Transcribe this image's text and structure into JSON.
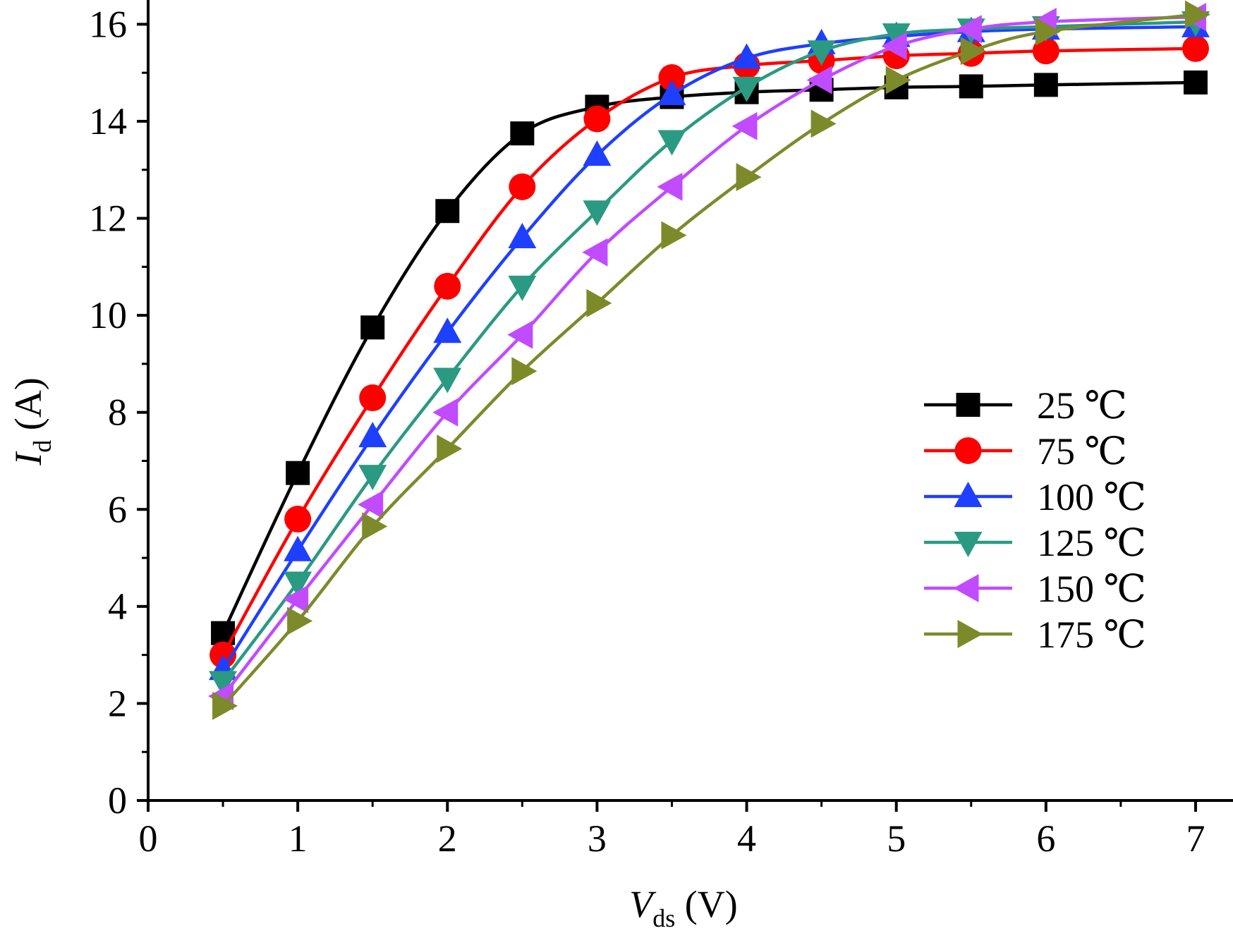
{
  "chart_data": {
    "type": "line",
    "xlabel": {
      "main": "V",
      "sub": "ds",
      "unit": " (V)"
    },
    "ylabel": {
      "main": "I",
      "sub": "d",
      "unit": " (A)"
    },
    "xlim": [
      0,
      7.25
    ],
    "ylim": [
      0,
      16.5
    ],
    "x_ticks": [
      "0",
      "1",
      "2",
      "3",
      "4",
      "5",
      "6",
      "7"
    ],
    "y_ticks": [
      "0",
      "2",
      "4",
      "6",
      "8",
      "10",
      "12",
      "14",
      "16"
    ],
    "grid": false,
    "legend_placement": "right",
    "x": [
      0.5,
      1,
      1.5,
      2,
      2.5,
      3,
      3.5,
      4,
      4.5,
      5,
      5.5,
      6,
      7
    ],
    "series": [
      {
        "name": "25 ℃",
        "color": "#000000",
        "marker": "square",
        "values": [
          3.45,
          6.75,
          9.75,
          12.15,
          13.75,
          14.3,
          14.5,
          14.6,
          14.65,
          14.7,
          14.72,
          14.75,
          14.8
        ]
      },
      {
        "name": "75 ℃",
        "color": "#ff0000",
        "marker": "circle",
        "values": [
          3.0,
          5.8,
          8.3,
          10.6,
          12.65,
          14.05,
          14.9,
          15.15,
          15.25,
          15.35,
          15.4,
          15.45,
          15.5
        ]
      },
      {
        "name": "100 ℃",
        "color": "#1f3fff",
        "marker": "triangle-up",
        "values": [
          2.7,
          5.15,
          7.5,
          9.65,
          11.6,
          13.3,
          14.55,
          15.3,
          15.6,
          15.75,
          15.85,
          15.9,
          15.95
        ]
      },
      {
        "name": "125 ℃",
        "color": "#2a9a82",
        "marker": "triangle-down",
        "values": [
          2.45,
          4.5,
          6.7,
          8.7,
          10.6,
          12.15,
          13.6,
          14.7,
          15.45,
          15.8,
          15.9,
          15.95,
          16.05
        ]
      },
      {
        "name": "150 ℃",
        "color": "#c04bff",
        "marker": "triangle-left",
        "values": [
          2.15,
          4.15,
          6.1,
          8.0,
          9.6,
          11.3,
          12.65,
          13.9,
          14.85,
          15.55,
          15.9,
          16.05,
          16.15
        ]
      },
      {
        "name": "175 ℃",
        "color": "#7d8a2a",
        "marker": "triangle-right",
        "values": [
          1.95,
          3.7,
          5.65,
          7.25,
          8.85,
          10.25,
          11.65,
          12.85,
          13.95,
          14.85,
          15.45,
          15.85,
          16.2
        ]
      }
    ]
  }
}
